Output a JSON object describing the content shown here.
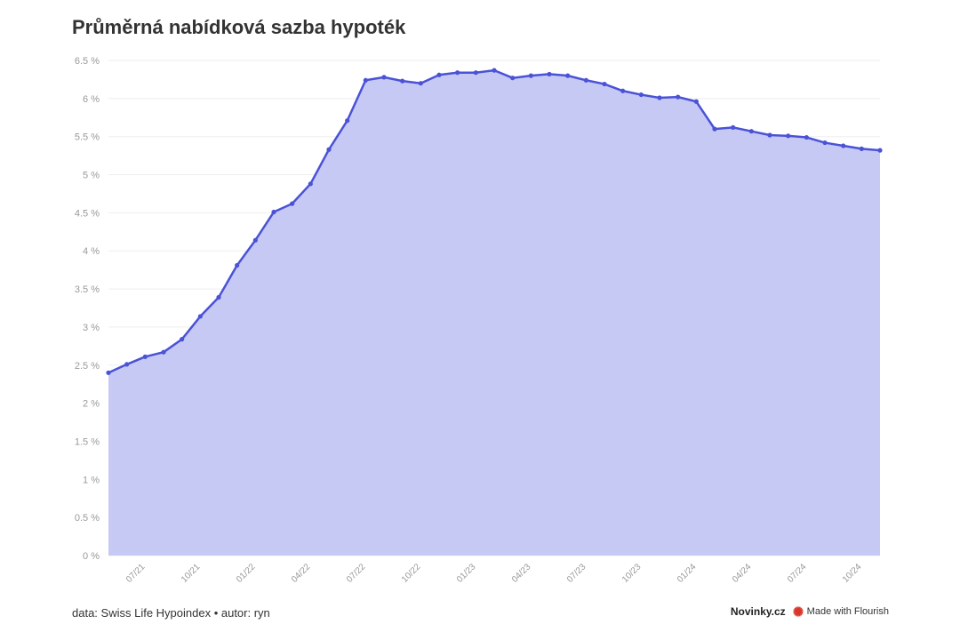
{
  "title": "Průměrná nabídková sazba hypoték",
  "footer": {
    "source": "data: Swiss Life Hypoindex • autor: ryn",
    "brand": "Novinky.cz",
    "made_with": "Made with Flourish"
  },
  "colors": {
    "line": "#4a52d6",
    "area": "#c7c9f5",
    "grid": "#eeeeee",
    "flourish_icon": "#d9362b"
  },
  "chart_data": {
    "type": "area",
    "ylim": [
      0,
      6.5
    ],
    "y_ticks": [
      0,
      0.5,
      1,
      1.5,
      2,
      2.5,
      3,
      3.5,
      4,
      4.5,
      5,
      5.5,
      6,
      6.5
    ],
    "y_tick_labels": [
      "0 %",
      "0.5 %",
      "1 %",
      "1.5 %",
      "2 %",
      "2.5 %",
      "3 %",
      "3.5 %",
      "4 %",
      "4.5 %",
      "5 %",
      "5.5 %",
      "6 %",
      "6.5 %"
    ],
    "x_tick_labels": [
      "07/21",
      "10/21",
      "01/22",
      "04/22",
      "07/22",
      "10/22",
      "01/23",
      "04/23",
      "07/23",
      "10/23",
      "01/24",
      "04/24",
      "07/24",
      "10/24"
    ],
    "x_tick_month_index": [
      2,
      5,
      8,
      11,
      14,
      17,
      20,
      23,
      26,
      29,
      32,
      35,
      38,
      41
    ],
    "x_start": "05/21",
    "x_end": "11/24",
    "values": [
      2.4,
      2.51,
      2.61,
      2.67,
      2.84,
      3.14,
      3.39,
      3.81,
      4.14,
      4.51,
      4.62,
      4.88,
      5.33,
      5.71,
      6.24,
      6.28,
      6.23,
      6.2,
      6.31,
      6.34,
      6.34,
      6.37,
      6.27,
      6.3,
      6.32,
      6.3,
      6.24,
      6.19,
      6.1,
      6.05,
      6.01,
      6.02,
      5.96,
      5.6,
      5.62,
      5.57,
      5.52,
      5.51,
      5.49,
      5.42,
      5.38,
      5.34,
      5.32
    ]
  }
}
